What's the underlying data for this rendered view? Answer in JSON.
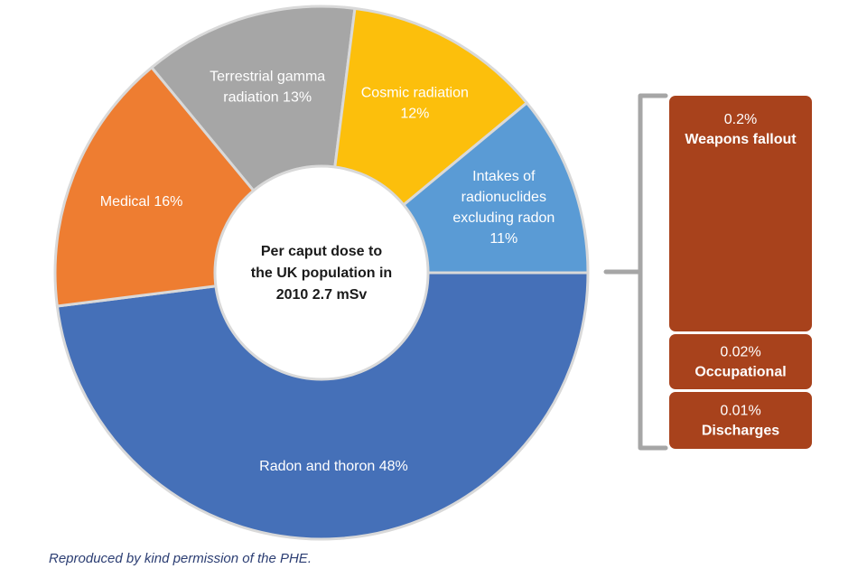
{
  "chart_data": {
    "type": "pie",
    "variant": "donut",
    "center_label": [
      "Per caput dose to",
      "the UK population in",
      "2010  2.7 mSv"
    ],
    "slices": [
      {
        "name": "Radon and thoron",
        "value": 48,
        "label_lines": [
          "Radon and thoron 48%"
        ],
        "color": "#4570b8"
      },
      {
        "name": "Medical",
        "value": 16,
        "label_lines": [
          "Medical 16%"
        ],
        "color": "#ee7d31"
      },
      {
        "name": "Terrestrial gamma radiation",
        "value": 13,
        "label_lines": [
          "Terrestrial gamma",
          "radiation 13%"
        ],
        "color": "#a6a6a6"
      },
      {
        "name": "Cosmic radiation",
        "value": 12,
        "label_lines": [
          "Cosmic radiation",
          "12%"
        ],
        "color": "#fcbf0c"
      },
      {
        "name": "Intakes of radionuclides excluding radon",
        "value": 11,
        "label_lines": [
          "Intakes of",
          "radionuclides",
          "excluding radon",
          "11%"
        ],
        "color": "#5a9bd5"
      }
    ],
    "breakdown": [
      {
        "percent": "0.2%",
        "name": "Weapons fallout",
        "value": 0.2
      },
      {
        "percent": "0.02%",
        "name": "Occupational",
        "value": 0.02
      },
      {
        "percent": "0.01%",
        "name": "Discharges",
        "value": 0.01
      }
    ],
    "breakdown_color": "#a8421c",
    "bracket_color": "#a6a6a6"
  },
  "credit": "Reproduced by kind permission of the PHE."
}
